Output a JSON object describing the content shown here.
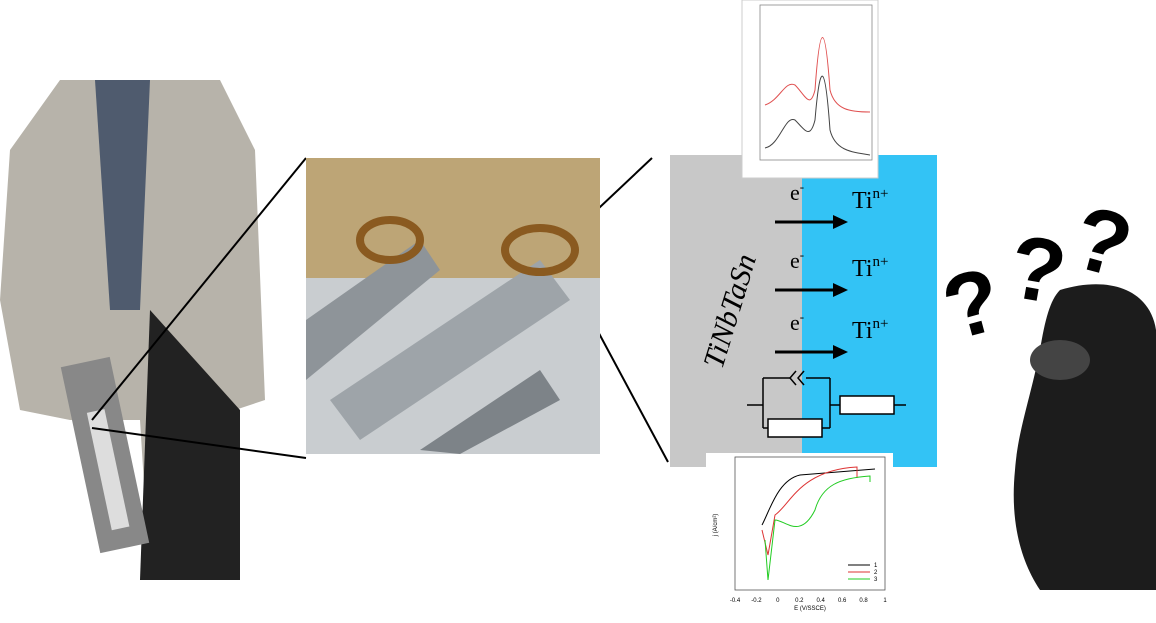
{
  "diagram": {
    "alloy_label": "TiNbTaSn",
    "reactions": [
      {
        "electron": "e",
        "electron_charge": "-",
        "ion": "Ti",
        "ion_charge": "n+"
      },
      {
        "electron": "e",
        "electron_charge": "-",
        "ion": "Ti",
        "ion_charge": "n+"
      },
      {
        "electron": "e",
        "electron_charge": "-",
        "ion": "Ti",
        "ion_charge": "n+"
      }
    ],
    "question_marks": [
      "?",
      "?",
      "?"
    ],
    "polarization_inset": {
      "x_label": "E (V/SSCE)",
      "y_label": "j (A/cm²)",
      "x_ticks": [
        "-0.4",
        "-0.2",
        "0",
        "0.2",
        "0.4",
        "0.6",
        "0.8",
        "1"
      ],
      "legend": [
        "1",
        "2",
        "3"
      ]
    }
  }
}
